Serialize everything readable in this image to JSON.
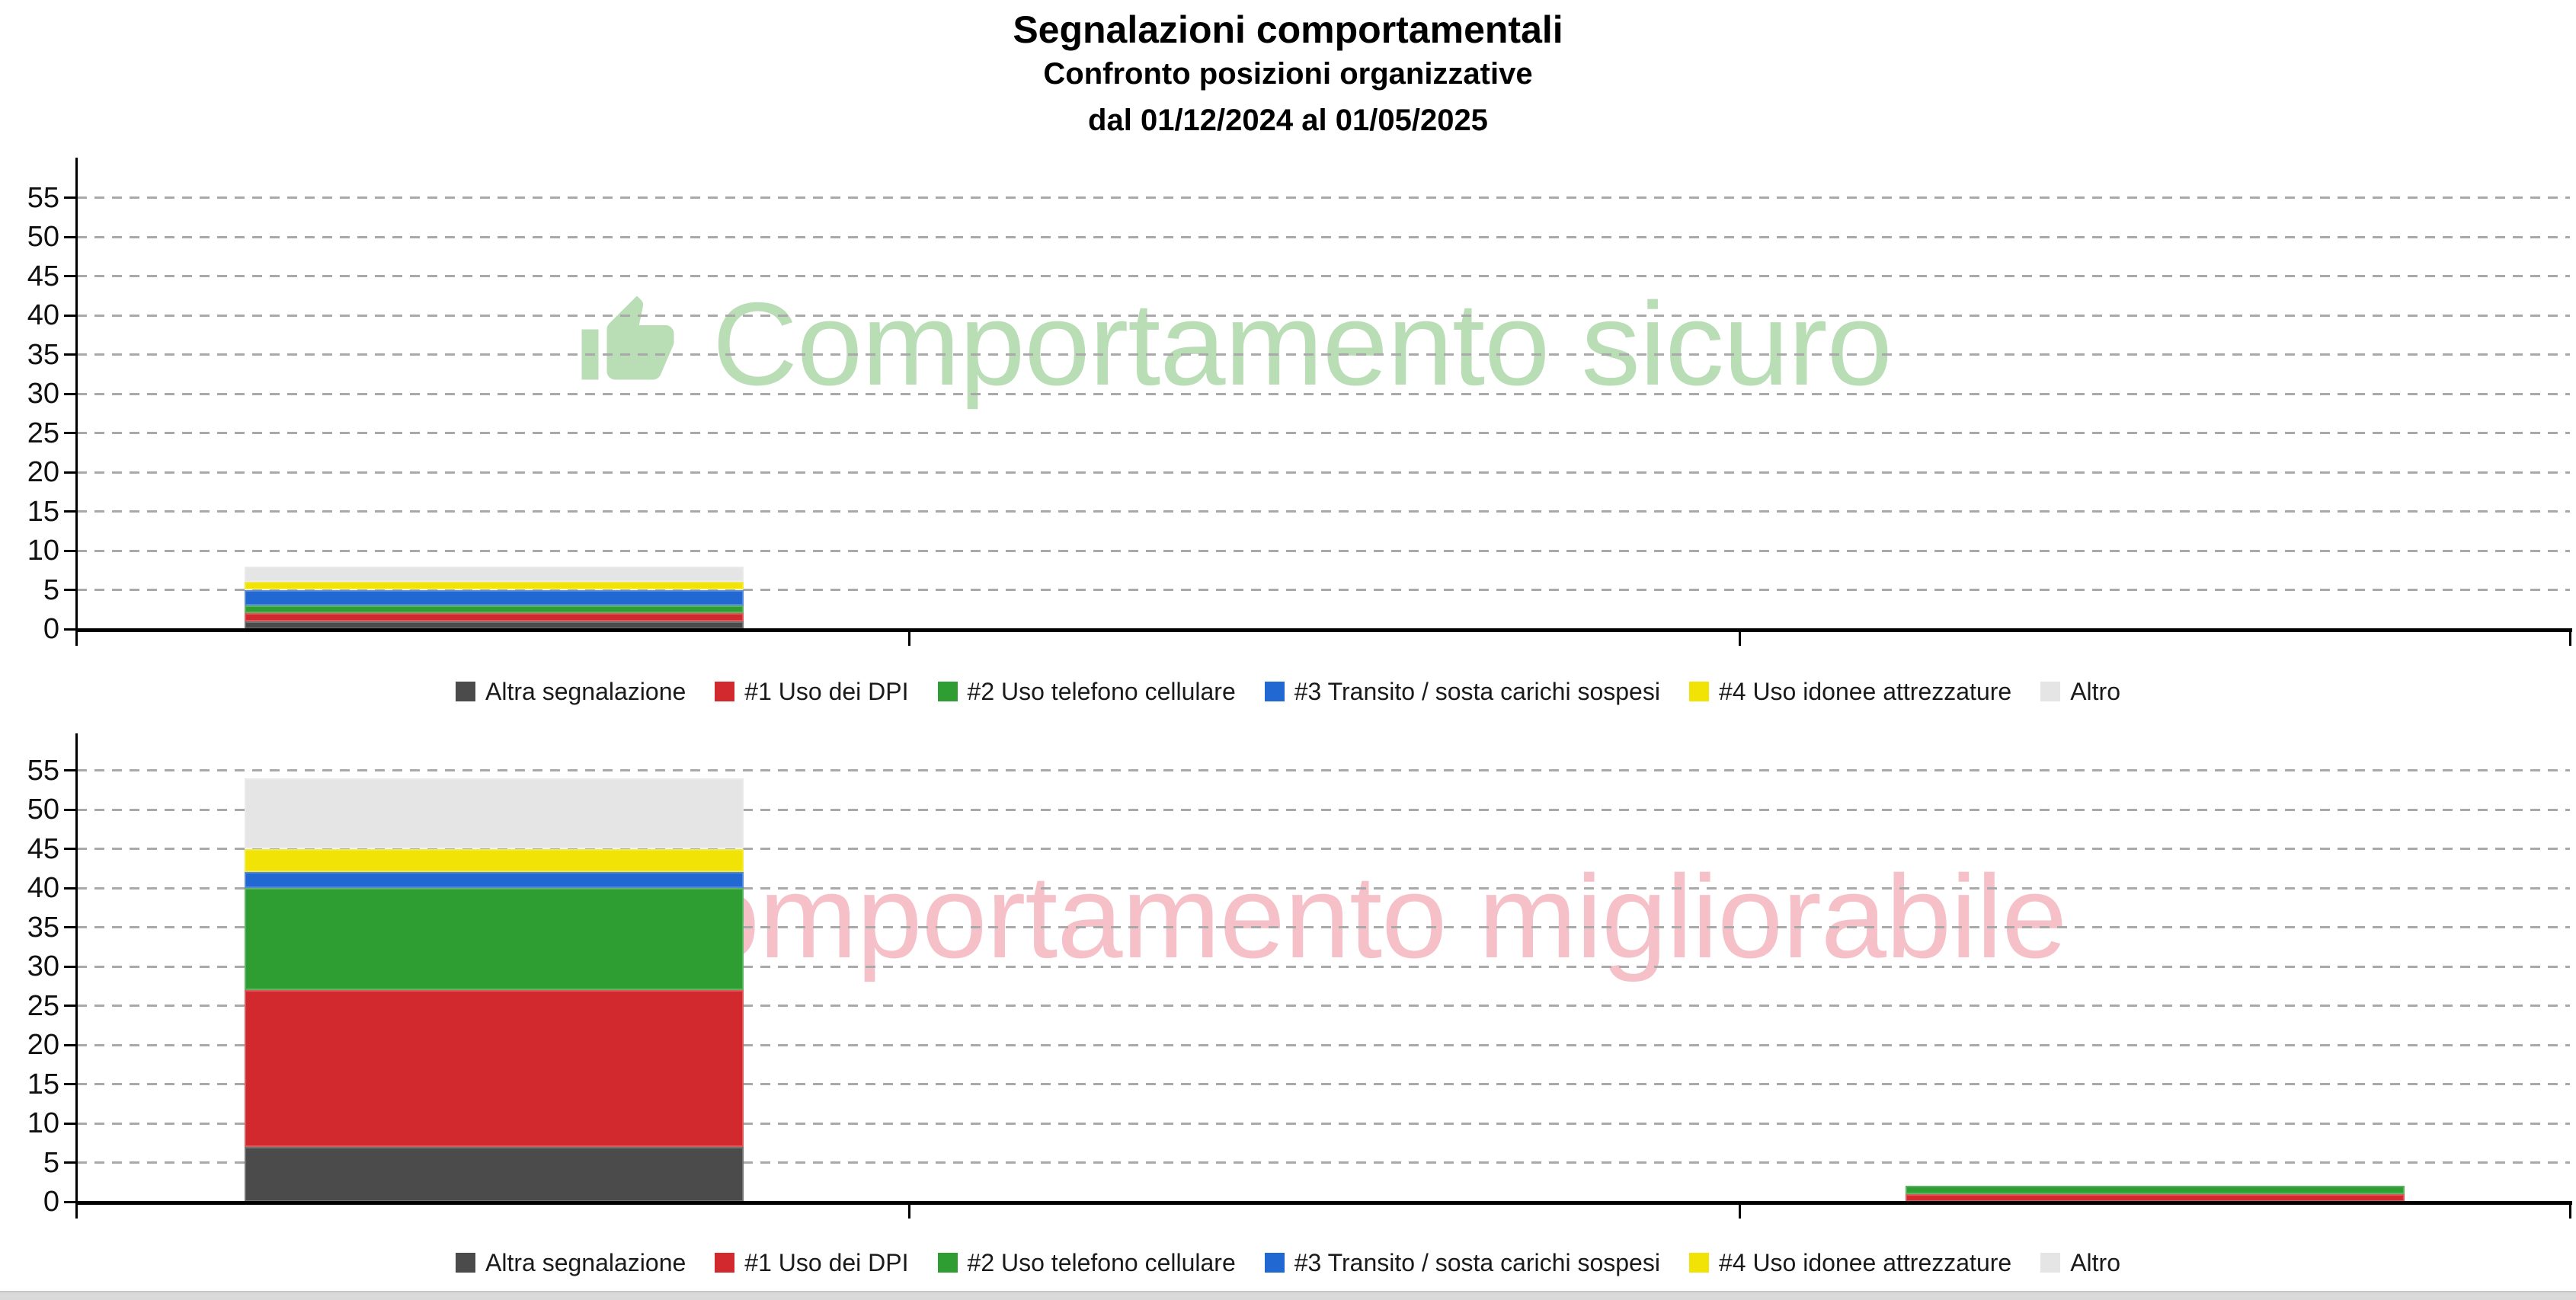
{
  "header": {
    "title": "Segnalazioni comportamentali",
    "subtitle": "Confronto posizioni organizzative",
    "period": "dal 01/12/2024 al 01/05/2025"
  },
  "watermarks": {
    "top": {
      "text": "Comportamento sicuro",
      "color": "#b9ddb5",
      "icon": "thumbs-up-icon"
    },
    "bottom": {
      "text": "Comportamento migliorabile",
      "color": "#f6c0c8",
      "icon": "thumbs-down-icon"
    }
  },
  "legend": {
    "items": [
      {
        "label": "Altra segnalazione",
        "color": "#4b4b4b"
      },
      {
        "label": "#1 Uso dei DPI",
        "color": "#d2292e"
      },
      {
        "label": "#2 Uso telefono cellulare",
        "color": "#2f9e32"
      },
      {
        "label": "#3 Transito / sosta carichi sospesi",
        "color": "#2268d3"
      },
      {
        "label": "#4 Uso idonee attrezzature",
        "color": "#f0e305"
      },
      {
        "label": "Altro",
        "color": "#e5e5e5"
      }
    ]
  },
  "chart_data": [
    {
      "type": "bar",
      "stacked": true,
      "watermark": "Comportamento sicuro",
      "categories": [
        "",
        "",
        ""
      ],
      "series": [
        {
          "name": "Altra segnalazione",
          "color": "#4b4b4b",
          "values": [
            1,
            0,
            0
          ]
        },
        {
          "name": "#1 Uso dei DPI",
          "color": "#d2292e",
          "values": [
            1,
            0,
            0
          ]
        },
        {
          "name": "#2 Uso telefono cellulare",
          "color": "#2f9e32",
          "values": [
            1,
            0,
            0
          ]
        },
        {
          "name": "#3 Transito / sosta carichi sospesi",
          "color": "#2268d3",
          "values": [
            2,
            0,
            0
          ]
        },
        {
          "name": "#4 Uso idonee attrezzature",
          "color": "#f0e305",
          "values": [
            1,
            0,
            0
          ]
        },
        {
          "name": "Altro",
          "color": "#e5e5e5",
          "values": [
            2,
            0,
            0
          ]
        }
      ],
      "totals": [
        8,
        0,
        0
      ],
      "yticks": [
        0,
        5,
        10,
        15,
        20,
        25,
        30,
        35,
        40,
        45,
        50,
        55
      ],
      "ylim": [
        0,
        58
      ],
      "grid": true,
      "gridline_style": "dashed",
      "legend_position": "bottom"
    },
    {
      "type": "bar",
      "stacked": true,
      "watermark": "Comportamento migliorabile",
      "categories": [
        "",
        "",
        ""
      ],
      "series": [
        {
          "name": "Altra segnalazione",
          "color": "#4b4b4b",
          "values": [
            7,
            0,
            0
          ]
        },
        {
          "name": "#1 Uso dei DPI",
          "color": "#d2292e",
          "values": [
            20,
            0,
            1
          ]
        },
        {
          "name": "#2 Uso telefono cellulare",
          "color": "#2f9e32",
          "values": [
            13,
            0,
            1
          ]
        },
        {
          "name": "#3 Transito / sosta carichi sospesi",
          "color": "#2268d3",
          "values": [
            2,
            0,
            0
          ]
        },
        {
          "name": "#4 Uso idonee attrezzature",
          "color": "#f0e305",
          "values": [
            3,
            0,
            0
          ]
        },
        {
          "name": "Altro",
          "color": "#e5e5e5",
          "values": [
            9,
            0,
            0
          ]
        }
      ],
      "totals": [
        54,
        0,
        2
      ],
      "yticks": [
        0,
        5,
        10,
        15,
        20,
        25,
        30,
        35,
        40,
        45,
        50,
        55
      ],
      "ylim": [
        0,
        58
      ],
      "grid": true,
      "gridline_style": "dashed",
      "legend_position": "bottom"
    }
  ]
}
